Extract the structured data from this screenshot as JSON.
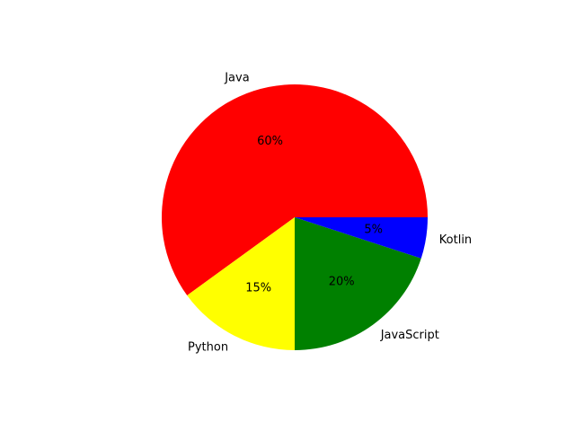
{
  "chart_data": {
    "type": "pie",
    "categories": [
      "Java",
      "Python",
      "JavaScript",
      "Kotlin"
    ],
    "values": [
      60,
      15,
      20,
      5
    ],
    "percent_labels": [
      "60%",
      "15%",
      "20%",
      "5%"
    ],
    "colors": [
      "#ff0000",
      "#ffff00",
      "#008000",
      "#0000ff"
    ],
    "start_angle_deg": 0,
    "direction": "counterclockwise"
  }
}
